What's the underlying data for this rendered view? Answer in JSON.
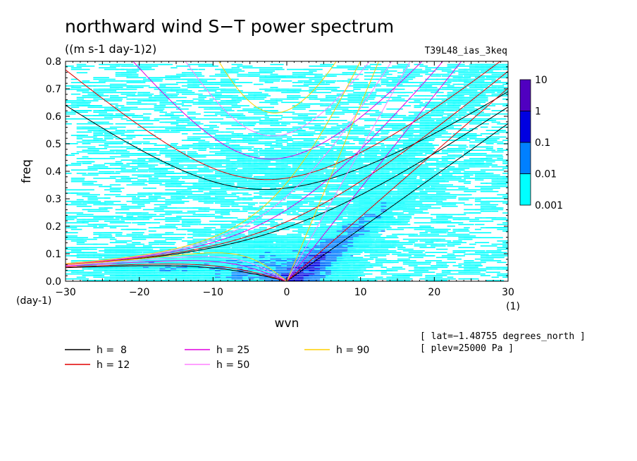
{
  "chart_data": {
    "type": "heatmap",
    "title": "northward wind S−T power spectrum",
    "units": "((m s-1 day-1)2)",
    "experiment": "T39L48_ias_3keq",
    "xlabel": "wvn",
    "ylabel": "freq",
    "x_unit": "(1)",
    "y_unit": "(day-1)",
    "xlim": [
      -30,
      30
    ],
    "ylim": [
      0,
      0.8
    ],
    "x_ticks": [
      "−30",
      "−20",
      "−10",
      "0",
      "10",
      "20",
      "30"
    ],
    "x_tick_values": [
      -30,
      -20,
      -10,
      0,
      10,
      20,
      30
    ],
    "y_ticks": [
      "0.0",
      "0.1",
      "0.2",
      "0.3",
      "0.4",
      "0.5",
      "0.6",
      "0.7",
      "0.8"
    ],
    "y_tick_values": [
      0,
      0.1,
      0.2,
      0.3,
      0.4,
      0.5,
      0.6,
      0.7,
      0.8
    ],
    "colorbar": {
      "levels": [
        "0.001",
        "0.01",
        "0.1",
        "1",
        "10"
      ],
      "colors": [
        "#00ffff",
        "#0080ff",
        "#0000e0",
        "#5000c0"
      ]
    },
    "dispersion_curves": [
      {
        "label": "h =  8",
        "h": 8,
        "color": "#000000"
      },
      {
        "label": "h = 12",
        "h": 12,
        "color": "#e00000"
      },
      {
        "label": "h = 25",
        "h": 25,
        "color": "#e000e0"
      },
      {
        "label": "h = 50",
        "h": 50,
        "color": "#ff80ff"
      },
      {
        "label": "h = 90",
        "h": 90,
        "color": "#ffd000"
      }
    ],
    "annotations": [
      "[ lat=−1.48755 degrees_north ]",
      "[ plev=25000 Pa ]"
    ]
  }
}
